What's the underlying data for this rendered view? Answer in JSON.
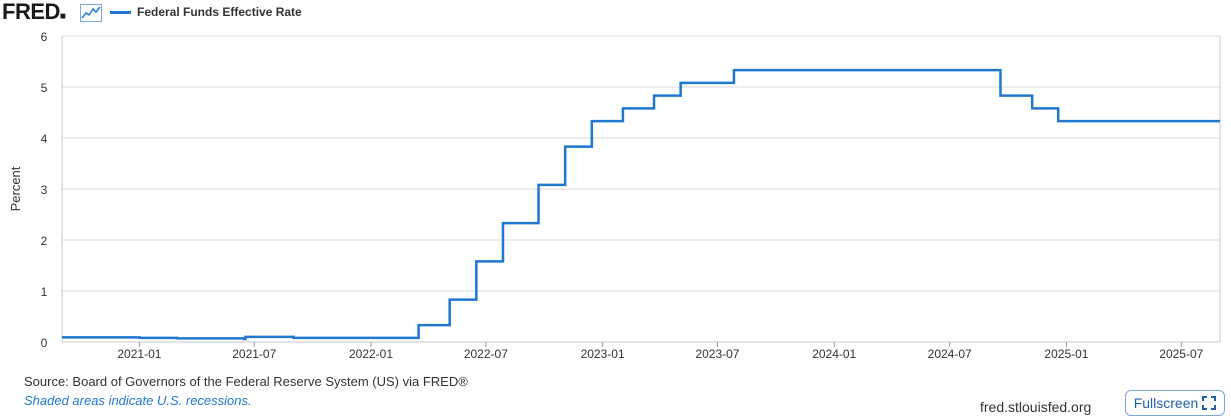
{
  "header": {
    "logo_text": "FRED",
    "logo_icon": "line-graph-icon",
    "legend_label": "Federal Funds Effective Rate",
    "legend_color": "#1f77d0"
  },
  "footer": {
    "source": "Source: Board of Governors of the Federal Reserve System (US) via FRED®",
    "note": "Shaded areas indicate U.S. recessions.",
    "url": "fred.stlouisfed.org",
    "fullscreen_label": "Fullscreen",
    "fullscreen_icon": "expand-icon"
  },
  "chart_data": {
    "type": "line",
    "style": "step",
    "title": "",
    "xlabel": "",
    "ylabel": "Percent",
    "ylim": [
      0,
      6
    ],
    "xlim": [
      "2020-09-01",
      "2025-08-31"
    ],
    "grid": true,
    "legend_position": "top-left",
    "line_color": "#1f77d0",
    "y_ticks": [
      "0",
      "1",
      "2",
      "3",
      "4",
      "5",
      "6"
    ],
    "x_ticks": [
      "2021-01",
      "2021-07",
      "2022-01",
      "2022-07",
      "2023-01",
      "2023-07",
      "2024-01",
      "2024-07",
      "2025-01",
      "2025-07"
    ],
    "series": [
      {
        "name": "Federal Funds Effective Rate",
        "points": [
          [
            "2020-09-01",
            0.09
          ],
          [
            "2020-12-01",
            0.09
          ],
          [
            "2021-01-01",
            0.08
          ],
          [
            "2021-03-01",
            0.07
          ],
          [
            "2021-06-15",
            0.06
          ],
          [
            "2021-06-17",
            0.1
          ],
          [
            "2021-09-01",
            0.08
          ],
          [
            "2022-03-17",
            0.33
          ],
          [
            "2022-05-05",
            0.83
          ],
          [
            "2022-06-16",
            1.58
          ],
          [
            "2022-07-28",
            2.33
          ],
          [
            "2022-09-22",
            3.08
          ],
          [
            "2022-11-03",
            3.83
          ],
          [
            "2022-12-15",
            4.33
          ],
          [
            "2023-02-02",
            4.58
          ],
          [
            "2023-03-23",
            4.83
          ],
          [
            "2023-05-04",
            5.08
          ],
          [
            "2023-07-27",
            5.33
          ],
          [
            "2024-09-19",
            4.83
          ],
          [
            "2024-11-08",
            4.58
          ],
          [
            "2024-12-19",
            4.33
          ],
          [
            "2025-08-31",
            4.33
          ]
        ]
      }
    ]
  }
}
